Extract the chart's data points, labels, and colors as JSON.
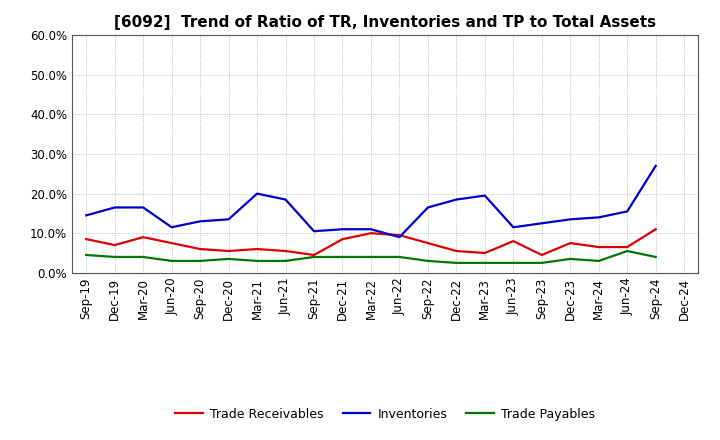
{
  "title": "[6092]  Trend of Ratio of TR, Inventories and TP to Total Assets",
  "xlabels": [
    "Sep-19",
    "Dec-19",
    "Mar-20",
    "Jun-20",
    "Sep-20",
    "Dec-20",
    "Mar-21",
    "Jun-21",
    "Sep-21",
    "Dec-21",
    "Mar-22",
    "Jun-22",
    "Sep-22",
    "Dec-22",
    "Mar-23",
    "Jun-23",
    "Sep-23",
    "Dec-23",
    "Mar-24",
    "Jun-24",
    "Sep-24",
    "Dec-24"
  ],
  "trade_receivables": [
    0.085,
    0.07,
    0.09,
    0.075,
    0.06,
    0.055,
    0.06,
    0.055,
    0.045,
    0.085,
    0.1,
    0.095,
    0.075,
    0.055,
    0.05,
    0.08,
    0.045,
    0.075,
    0.065,
    0.065,
    0.11,
    null
  ],
  "inventories": [
    0.145,
    0.165,
    0.165,
    0.115,
    0.13,
    0.135,
    0.2,
    0.185,
    0.105,
    0.11,
    0.11,
    0.09,
    0.165,
    0.185,
    0.195,
    0.115,
    0.125,
    0.135,
    0.14,
    0.155,
    0.27,
    null
  ],
  "trade_payables": [
    0.045,
    0.04,
    0.04,
    0.03,
    0.03,
    0.035,
    0.03,
    0.03,
    0.04,
    0.04,
    0.04,
    0.04,
    0.03,
    0.025,
    0.025,
    0.025,
    0.025,
    0.035,
    0.03,
    0.055,
    0.04,
    null
  ],
  "ylim": [
    0.0,
    0.6
  ],
  "yticks": [
    0.0,
    0.1,
    0.2,
    0.3,
    0.4,
    0.5,
    0.6
  ],
  "tr_color": "#dd0000",
  "inv_color": "#0000cc",
  "tp_color": "#007700",
  "line_width": 1.6,
  "background_color": "#ffffff",
  "grid_color": "#aaaaaa",
  "legend_labels": [
    "Trade Receivables",
    "Inventories",
    "Trade Payables"
  ],
  "title_fontsize": 11,
  "tick_fontsize": 8.5,
  "legend_fontsize": 9
}
